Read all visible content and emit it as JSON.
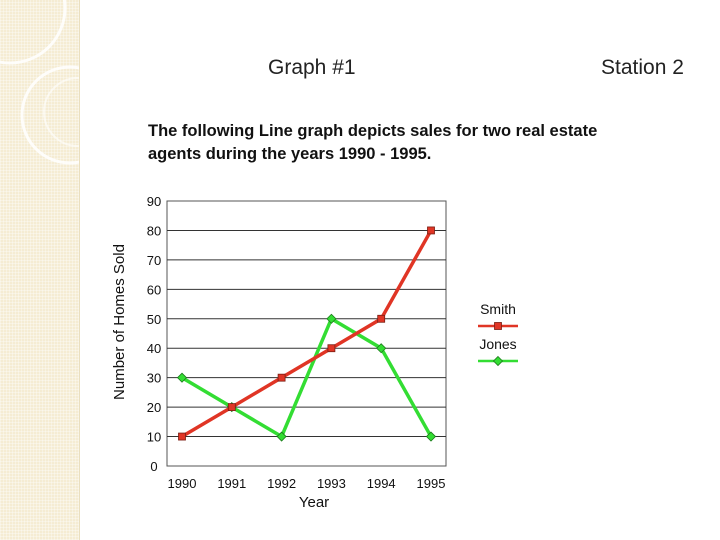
{
  "slide": {
    "header_left": "Graph #1",
    "header_right": "Station 2",
    "description_line1": "The following Line graph depicts sales for two real estate",
    "description_line2": "agents during the years 1990 - 1995."
  },
  "chart_data": {
    "type": "line",
    "title": "",
    "xlabel": "Year",
    "ylabel": "Number of Homes Sold",
    "x": [
      "1990",
      "1991",
      "1992",
      "1993",
      "1994",
      "1995"
    ],
    "ylim": [
      0,
      90
    ],
    "yticks": [
      0,
      10,
      20,
      30,
      40,
      50,
      60,
      70,
      80,
      90
    ],
    "grid": true,
    "legend": "right",
    "series": [
      {
        "name": "Smith",
        "values": [
          10,
          20,
          30,
          40,
          50,
          80
        ],
        "color": "#e03525",
        "marker": "square"
      },
      {
        "name": "Jones",
        "values": [
          30,
          20,
          10,
          50,
          40,
          10
        ],
        "color": "#33dd33",
        "marker": "diamond"
      }
    ]
  }
}
